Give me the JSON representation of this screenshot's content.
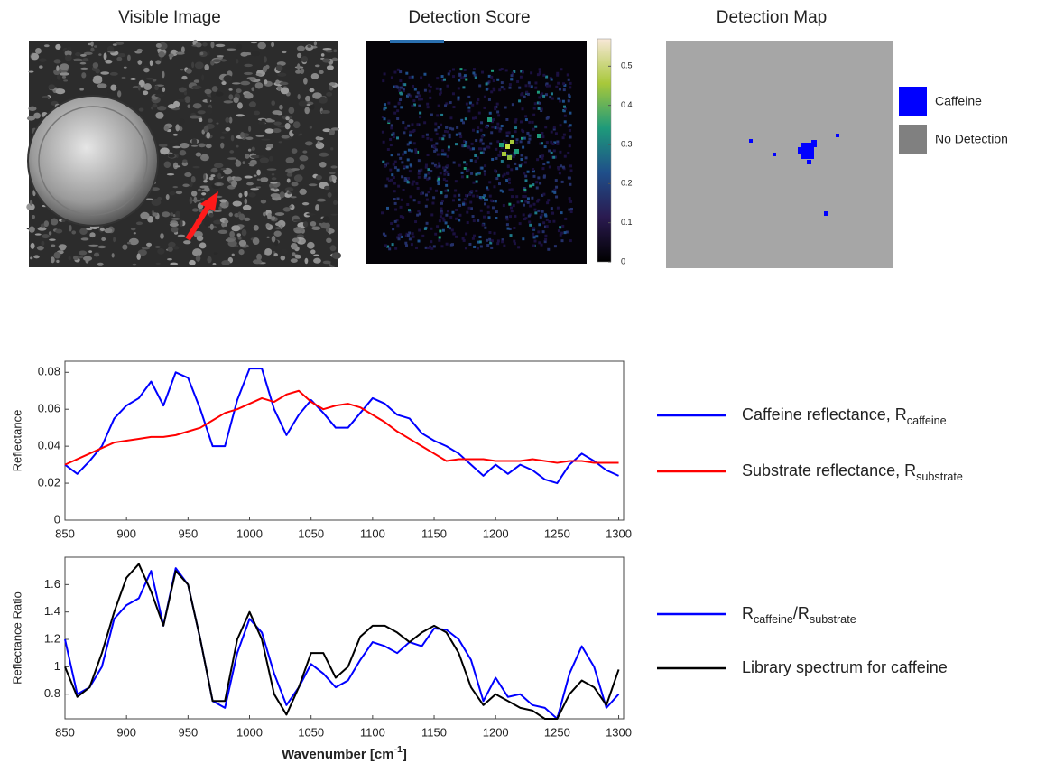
{
  "images": [
    {
      "title": "Visible Image"
    },
    {
      "title": "Detection Score",
      "colorbar": {
        "lim": [
          0,
          0.57
        ],
        "ticks": [
          0,
          0.1,
          0.2,
          0.3,
          0.4,
          0.5
        ]
      }
    },
    {
      "title": "Detection Map",
      "legend": [
        {
          "name": "Caffeine",
          "color": "#0000ff"
        },
        {
          "name": "No Detection",
          "color": "#808080"
        }
      ]
    }
  ],
  "chart_data": [
    {
      "type": "line",
      "ylabel": "Reflectance",
      "xlim": [
        850,
        1304
      ],
      "xticks": [
        850,
        900,
        950,
        1000,
        1050,
        1100,
        1150,
        1200,
        1250,
        1300
      ],
      "ylim": [
        0,
        0.086
      ],
      "yticks": [
        0,
        0.02,
        0.04,
        0.06,
        0.08
      ],
      "x": [
        850,
        860,
        870,
        880,
        890,
        900,
        910,
        920,
        930,
        940,
        950,
        960,
        970,
        980,
        990,
        1000,
        1010,
        1020,
        1030,
        1040,
        1050,
        1060,
        1070,
        1080,
        1090,
        1100,
        1110,
        1120,
        1130,
        1140,
        1150,
        1160,
        1170,
        1180,
        1190,
        1200,
        1210,
        1220,
        1230,
        1240,
        1250,
        1260,
        1270,
        1280,
        1290,
        1300
      ],
      "series": [
        {
          "name": [
            {
              "text": "Caffeine reflectance, R"
            },
            {
              "text": "caffeine",
              "sub": true
            }
          ],
          "color": "#0000ff",
          "values": [
            0.03,
            0.025,
            0.032,
            0.04,
            0.055,
            0.062,
            0.066,
            0.075,
            0.062,
            0.08,
            0.077,
            0.06,
            0.04,
            0.04,
            0.065,
            0.082,
            0.082,
            0.06,
            0.046,
            0.057,
            0.065,
            0.058,
            0.05,
            0.05,
            0.058,
            0.066,
            0.063,
            0.057,
            0.055,
            0.047,
            0.043,
            0.04,
            0.036,
            0.03,
            0.024,
            0.03,
            0.025,
            0.03,
            0.027,
            0.022,
            0.02,
            0.03,
            0.036,
            0.032,
            0.027,
            0.024
          ]
        },
        {
          "name": [
            {
              "text": "Substrate reflectance, R"
            },
            {
              "text": "substrate",
              "sub": true
            }
          ],
          "color": "#ff0000",
          "values": [
            0.03,
            0.033,
            0.036,
            0.039,
            0.042,
            0.043,
            0.044,
            0.045,
            0.045,
            0.046,
            0.048,
            0.05,
            0.054,
            0.058,
            0.06,
            0.063,
            0.066,
            0.064,
            0.068,
            0.07,
            0.064,
            0.06,
            0.062,
            0.063,
            0.061,
            0.057,
            0.053,
            0.048,
            0.044,
            0.04,
            0.036,
            0.032,
            0.033,
            0.033,
            0.033,
            0.032,
            0.032,
            0.032,
            0.033,
            0.032,
            0.031,
            0.032,
            0.032,
            0.031,
            0.031,
            0.031
          ]
        }
      ]
    },
    {
      "type": "line",
      "ylabel": "Reflectance Ratio",
      "xlabel": [
        {
          "text": "Wavenumber [cm"
        },
        {
          "text": "-1",
          "sup": true
        },
        {
          "text": "]"
        }
      ],
      "xlim": [
        850,
        1304
      ],
      "xticks": [
        850,
        900,
        950,
        1000,
        1050,
        1100,
        1150,
        1200,
        1250,
        1300
      ],
      "ylim": [
        0.62,
        1.8
      ],
      "yticks": [
        0.8,
        1,
        1.2,
        1.4,
        1.6
      ],
      "x": [
        850,
        860,
        870,
        880,
        890,
        900,
        910,
        920,
        930,
        940,
        950,
        960,
        970,
        980,
        990,
        1000,
        1010,
        1020,
        1030,
        1040,
        1050,
        1060,
        1070,
        1080,
        1090,
        1100,
        1110,
        1120,
        1130,
        1140,
        1150,
        1160,
        1170,
        1180,
        1190,
        1200,
        1210,
        1220,
        1230,
        1240,
        1250,
        1260,
        1270,
        1280,
        1290,
        1300
      ],
      "series": [
        {
          "name": [
            {
              "text": "R"
            },
            {
              "text": "caffeine",
              "sub": true
            },
            {
              "text": "/R"
            },
            {
              "text": "substrate",
              "sub": true
            }
          ],
          "color": "#0000ff",
          "values": [
            1.2,
            0.8,
            0.85,
            1.0,
            1.35,
            1.45,
            1.5,
            1.7,
            1.3,
            1.72,
            1.6,
            1.2,
            0.75,
            0.7,
            1.1,
            1.35,
            1.25,
            0.95,
            0.72,
            0.85,
            1.02,
            0.95,
            0.85,
            0.9,
            1.05,
            1.18,
            1.15,
            1.1,
            1.18,
            1.15,
            1.28,
            1.27,
            1.2,
            1.05,
            0.75,
            0.92,
            0.78,
            0.8,
            0.72,
            0.7,
            0.62,
            0.95,
            1.15,
            1.0,
            0.7,
            0.8
          ]
        },
        {
          "name": "Library spectrum for caffeine",
          "color": "#000000",
          "values": [
            1.0,
            0.78,
            0.85,
            1.1,
            1.4,
            1.65,
            1.75,
            1.55,
            1.3,
            1.7,
            1.6,
            1.2,
            0.75,
            0.75,
            1.2,
            1.4,
            1.2,
            0.8,
            0.65,
            0.85,
            1.1,
            1.1,
            0.92,
            1.0,
            1.22,
            1.3,
            1.3,
            1.25,
            1.18,
            1.25,
            1.3,
            1.25,
            1.1,
            0.85,
            0.72,
            0.8,
            0.75,
            0.7,
            0.68,
            0.62,
            0.62,
            0.8,
            0.9,
            0.85,
            0.72,
            0.98
          ]
        }
      ]
    }
  ]
}
